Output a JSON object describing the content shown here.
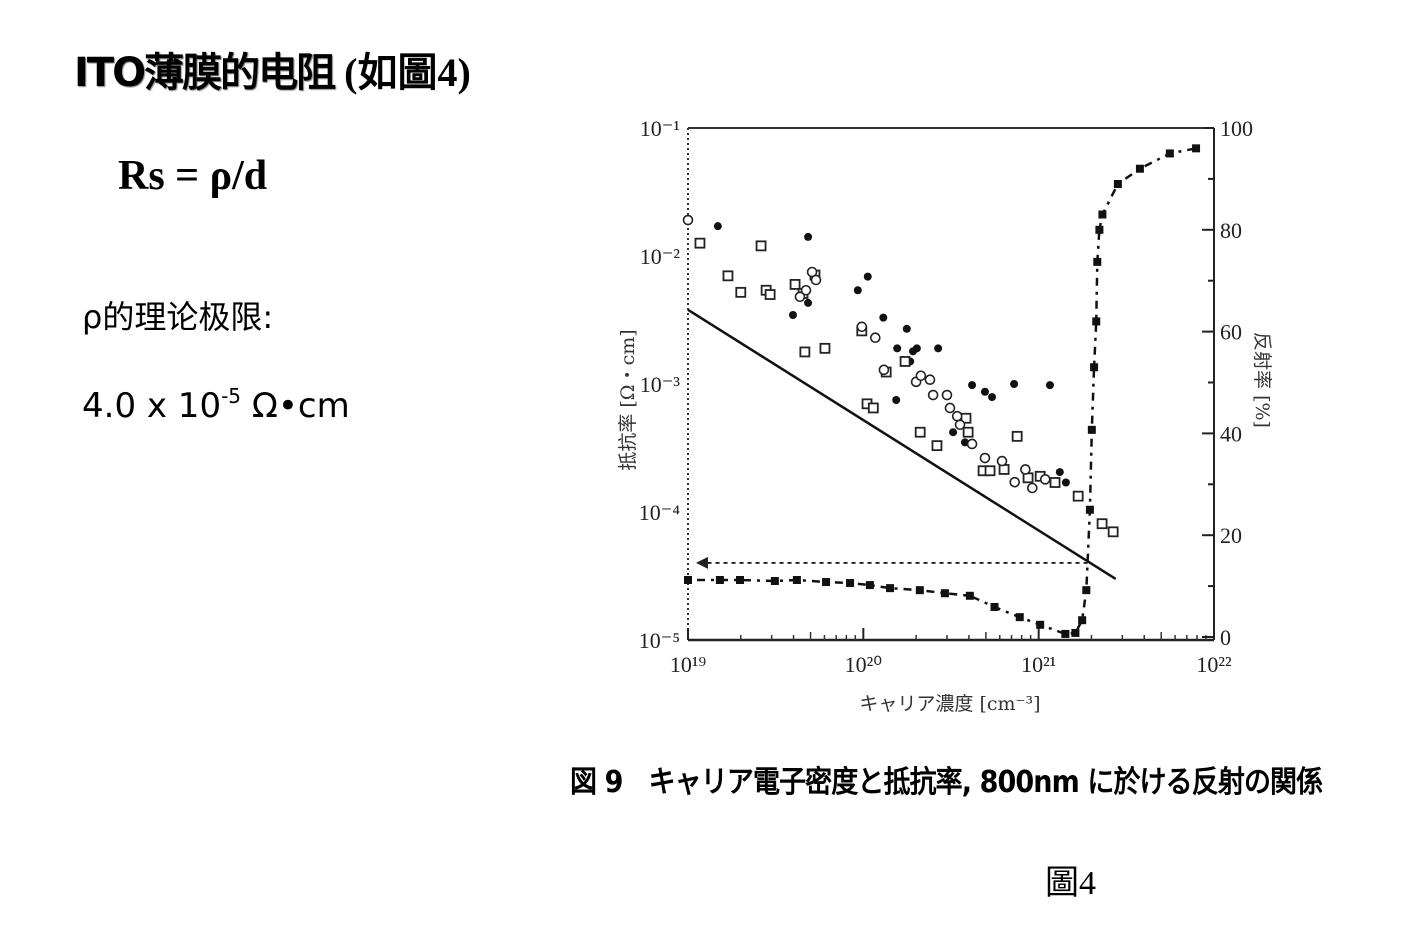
{
  "slide": {
    "title_main": "ITO薄膜的电阻",
    "title_ref": " (如圖4)",
    "formula": "Rs = ρ/d",
    "limit_label": "ρ的理论极限:",
    "limit_value_mantissa": "4.0 x 10",
    "limit_value_exponent": "-5",
    "limit_value_unit": " Ω•cm",
    "figure_label": "圖4"
  },
  "chart_data": {
    "type": "scatter",
    "caption": "図 9　キャリア電子密度と抵抗率, 800nm に於ける反射の関係",
    "xlabel": "キャリア濃度 [cm⁻³]",
    "ylabel": "抵抗率 [Ω・cm]",
    "y2label": "反射率 [%]",
    "xscale": "log",
    "yscale": "log",
    "xlim": [
      1e+19,
      1e+22
    ],
    "ylim": [
      1e-05,
      0.1
    ],
    "y2lim": [
      0,
      100
    ],
    "x_tick_labels": [
      "10¹⁹",
      "10²⁰",
      "10²¹",
      "10²²"
    ],
    "y_tick_labels": [
      "10⁻¹",
      "10⁻²",
      "10⁻³",
      "10⁻⁴",
      "10⁻⁵"
    ],
    "y2_tick_labels": [
      "0",
      "20",
      "40",
      "60",
      "80",
      "100"
    ],
    "grid": false,
    "series": [
      {
        "marker": "filled-circle",
        "axis": "left",
        "x": [
          1.48e+19,
          4.84e+19,
          3.97e+19,
          4.84e+19,
          9.3e+19,
          1.06e+20,
          1.3e+20,
          1.77e+20,
          1.56e+20,
          2.02e+20,
          2.67e+20,
          1.92e+20,
          1.85e+20,
          1.54e+20,
          4.17e+20,
          4.94e+20,
          5.42e+20,
          7.24e+20,
          1.16e+21,
          3.25e+20,
          3.8e+20,
          1.32e+21,
          1.43e+21
        ],
        "y": [
          0.0171,
          0.0141,
          0.00346,
          0.0043,
          0.0054,
          0.0069,
          0.0033,
          0.0027,
          0.0019,
          0.0019,
          0.0019,
          0.0018,
          0.0015,
          0.00075,
          0.00098,
          0.00087,
          0.00079,
          0.001,
          0.00098,
          0.00042,
          0.00035,
          0.000205,
          0.00017
        ]
      },
      {
        "marker": "open-square",
        "axis": "left",
        "x": [
          1.17e+19,
          2.61e+19,
          1.69e+19,
          2e+19,
          2.79e+19,
          2.94e+19,
          4.08e+19,
          4.53e+19,
          5.3e+19,
          4.64e+19,
          6.04e+19,
          9.8e+19,
          1.05e+20,
          1.14e+20,
          1.35e+20,
          1.73e+20,
          2.11e+20,
          2.63e+20,
          3.85e+20,
          3.96e+20,
          4.82e+20,
          5.28e+20,
          6.35e+20,
          7.54e+20,
          8.7e+20,
          1.02e+21,
          1.24e+21,
          1.68e+21,
          2.3e+21,
          2.66e+21
        ],
        "y": [
          0.0126,
          0.012,
          0.007,
          0.0052,
          0.0054,
          0.005,
          0.006,
          0.0051,
          0.0071,
          0.00178,
          0.0019,
          0.0026,
          0.0007,
          0.00065,
          0.00124,
          0.0015,
          0.00042,
          0.00033,
          0.00054,
          0.00042,
          0.00021,
          0.00021,
          0.000215,
          0.00039,
          0.000185,
          0.00019,
          0.00017,
          0.000133,
          8.1e-05,
          7e-05
        ]
      },
      {
        "marker": "open-circle",
        "axis": "left",
        "x": [
          1e+19,
          4.35e+19,
          4.71e+19,
          5.1e+19,
          5.37e+19,
          9.8e+19,
          1.17e+20,
          1.31e+20,
          2e+20,
          2.13e+20,
          2.4e+20,
          2.5e+20,
          3e+20,
          3.12e+20,
          3.43e+20,
          3.56e+20,
          4.17e+20,
          4.94e+20,
          6.18e+20,
          7.3e+20,
          8.4e+20,
          9.2e+20,
          1.09e+21
        ],
        "y": [
          0.0191,
          0.0048,
          0.0054,
          0.0075,
          0.0065,
          0.0028,
          0.0023,
          0.00129,
          0.00104,
          0.00116,
          0.00108,
          0.00082,
          0.00082,
          0.00065,
          0.00056,
          0.00048,
          0.00034,
          0.000264,
          0.00025,
          0.000171,
          0.000215,
          0.000154,
          0.00018
        ]
      },
      {
        "marker": "filled-square",
        "line": "dash-dot",
        "axis": "right",
        "x": [
          1e+19,
          1.52e+19,
          1.98e+19,
          3.13e+19,
          4.18e+19,
          6.13e+19,
          8.4e+19,
          1.09e+20,
          1.42e+20,
          2.1e+20,
          2.92e+20,
          4.05e+20,
          5.6e+20,
          7.8e+20,
          1.02e+21,
          1.42e+21,
          1.62e+21,
          1.77e+21,
          1.87e+21,
          1.96e+21,
          2.01e+21,
          2.07e+21,
          2.13e+21,
          2.16e+21,
          2.22e+21,
          2.31e+21,
          2.83e+21,
          3.78e+21,
          5.6e+21,
          7.9e+21
        ],
        "y": [
          11.2,
          11.2,
          11.2,
          11.0,
          11.2,
          10.8,
          10.6,
          10.2,
          9.6,
          9.2,
          8.6,
          8.1,
          5.9,
          3.9,
          2.4,
          0.6,
          0.8,
          3.3,
          9.2,
          25,
          40.7,
          53,
          62,
          73.7,
          80,
          83,
          89,
          92,
          95,
          96
        ]
      },
      {
        "type": "line",
        "style": "solid",
        "axis": "left",
        "x": [
          1e+19,
          2.75e+21
        ],
        "y": [
          0.0038,
          3e-05
        ]
      },
      {
        "type": "arrow",
        "style": "dashed",
        "axis": "left",
        "x": [
          1.9e+21,
          1.17e+19
        ],
        "y": [
          4e-05,
          4e-05
        ]
      }
    ]
  }
}
